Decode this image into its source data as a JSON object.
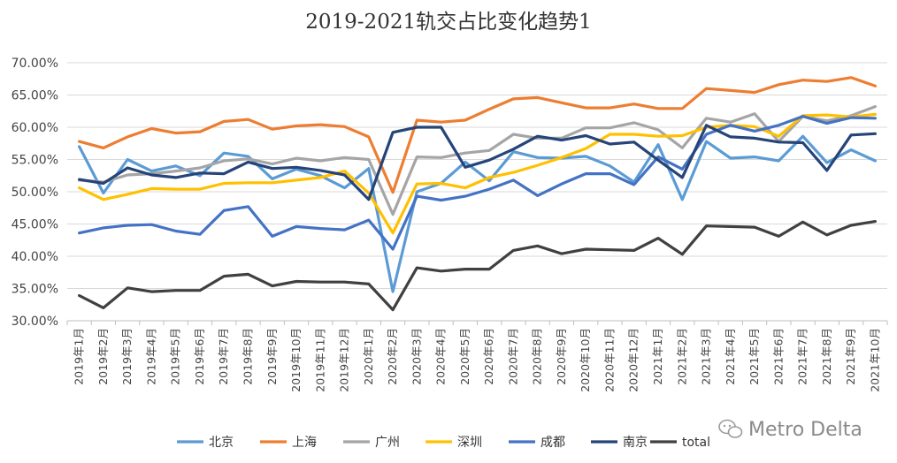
{
  "chart_data": {
    "type": "line",
    "title": "2019-2021轨交占比变化趋势1",
    "xlabel": "",
    "ylabel": "",
    "ylim": [
      30,
      70
    ],
    "yticks": [
      "30.00%",
      "35.00%",
      "40.00%",
      "45.00%",
      "50.00%",
      "55.00%",
      "60.00%",
      "65.00%",
      "70.00%"
    ],
    "grid": true,
    "legend_position": "bottom",
    "categories": [
      "2019年1月",
      "2019年2月",
      "2019年3月",
      "2019年4月",
      "2019年5月",
      "2019年6月",
      "2019年7月",
      "2019年8月",
      "2019年9月",
      "2019年10月",
      "2019年11月",
      "2019年12月",
      "2020年1月",
      "2020年2月",
      "2020年3月",
      "2020年4月",
      "2020年5月",
      "2020年6月",
      "2020年7月",
      "2020年8月",
      "2020年9月",
      "2020年10月",
      "2020年11月",
      "2020年12月",
      "2021年1月",
      "2021年2月",
      "2021年3月",
      "2021年4月",
      "2021年5月",
      "2021年6月",
      "2021年7月",
      "2021年8月",
      "2021年9月",
      "2021年10月"
    ],
    "series": [
      {
        "name": "北京",
        "color": "#5B9BD5",
        "values": [
          57.0,
          49.8,
          55.0,
          53.2,
          54.0,
          52.5,
          56.0,
          55.5,
          52.0,
          53.5,
          52.5,
          50.6,
          53.6,
          34.5,
          50.0,
          51.3,
          54.6,
          51.7,
          56.2,
          55.3,
          55.2,
          55.5,
          54.0,
          51.5,
          57.3,
          48.8,
          57.8,
          55.2,
          55.4,
          54.8,
          58.6,
          54.5,
          56.5,
          54.8
        ]
      },
      {
        "name": "上海",
        "color": "#ED7D31",
        "values": [
          57.8,
          56.8,
          58.5,
          59.8,
          59.1,
          59.3,
          60.9,
          61.2,
          59.7,
          60.2,
          60.4,
          60.1,
          58.5,
          49.9,
          61.1,
          60.8,
          61.1,
          62.8,
          64.4,
          64.6,
          63.8,
          63.0,
          63.0,
          63.6,
          62.9,
          62.9,
          66.0,
          65.7,
          65.4,
          66.6,
          67.3,
          67.1,
          67.7,
          66.4
        ]
      },
      {
        "name": "广州",
        "color": "#A5A5A5",
        "values": [
          51.8,
          51.5,
          52.6,
          52.8,
          53.2,
          53.7,
          54.8,
          55.1,
          54.3,
          55.2,
          54.8,
          55.3,
          55.0,
          46.5,
          55.4,
          55.3,
          56.0,
          56.4,
          58.9,
          58.3,
          58.3,
          59.9,
          59.9,
          60.7,
          59.6,
          56.8,
          61.4,
          60.8,
          62.1,
          57.8,
          61.7,
          61.0,
          61.8,
          63.2
        ]
      },
      {
        "name": "深圳",
        "color": "#FFC000",
        "values": [
          50.6,
          48.8,
          49.6,
          50.5,
          50.4,
          50.4,
          51.3,
          51.4,
          51.4,
          51.8,
          52.2,
          53.2,
          49.8,
          43.6,
          51.2,
          51.3,
          50.6,
          52.2,
          53.0,
          54.1,
          55.3,
          56.7,
          58.9,
          58.9,
          58.6,
          58.7,
          60.0,
          60.3,
          60.1,
          58.6,
          61.8,
          61.9,
          61.6,
          62.0
        ]
      },
      {
        "name": "成都",
        "color": "#4472C4",
        "values": [
          43.6,
          44.4,
          44.8,
          44.9,
          43.9,
          43.4,
          47.1,
          47.7,
          43.1,
          44.6,
          44.3,
          44.1,
          45.6,
          41.1,
          49.3,
          48.7,
          49.3,
          50.4,
          51.8,
          49.4,
          51.2,
          52.8,
          52.8,
          51.1,
          55.4,
          53.5,
          58.9,
          60.3,
          59.4,
          60.3,
          61.7,
          60.6,
          61.5,
          61.4
        ]
      },
      {
        "name": "南京",
        "color": "#264478",
        "values": [
          51.9,
          51.3,
          53.7,
          52.6,
          52.2,
          52.9,
          52.8,
          54.6,
          53.6,
          53.8,
          53.3,
          52.6,
          48.8,
          59.2,
          60.0,
          60.0,
          53.8,
          54.9,
          56.6,
          58.6,
          58.0,
          58.7,
          57.4,
          57.7,
          54.9,
          52.2,
          60.3,
          58.5,
          58.3,
          57.7,
          57.6,
          53.3,
          58.8,
          59.0
        ]
      },
      {
        "name": "total",
        "color": "#404040",
        "values": [
          33.9,
          32.0,
          35.1,
          34.5,
          34.7,
          34.7,
          36.9,
          37.2,
          35.4,
          36.1,
          36.0,
          36.0,
          35.7,
          31.7,
          38.2,
          37.7,
          38.0,
          38.0,
          40.9,
          41.6,
          40.4,
          41.1,
          41.0,
          40.9,
          42.8,
          40.3,
          44.7,
          44.6,
          44.5,
          43.1,
          45.3,
          43.3,
          44.8,
          45.4
        ]
      }
    ]
  },
  "watermark": {
    "icon": "wechat-icon",
    "text": "Metro Delta"
  }
}
